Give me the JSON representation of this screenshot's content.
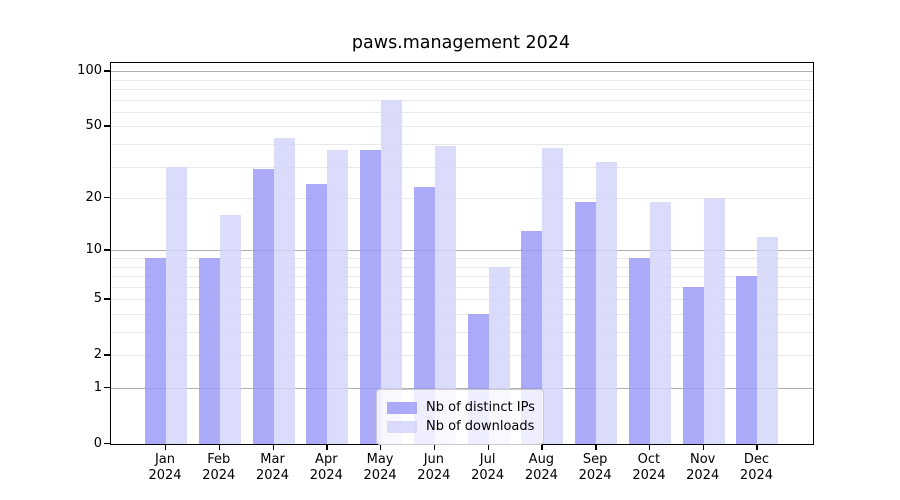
{
  "title": "paws.management 2024",
  "chart_data": {
    "type": "bar",
    "title": "paws.management 2024",
    "categories": [
      "Jan",
      "Feb",
      "Mar",
      "Apr",
      "May",
      "Jun",
      "Jul",
      "Aug",
      "Sep",
      "Oct",
      "Nov",
      "Dec"
    ],
    "year": "2024",
    "series": [
      {
        "name": "Nb of distinct IPs",
        "color": "#9696f8",
        "values": [
          9,
          9,
          29,
          24,
          37,
          23,
          4,
          13,
          19,
          9,
          6,
          7
        ]
      },
      {
        "name": "Nb of downloads",
        "color": "#d2d2fa",
        "values": [
          30,
          16,
          43,
          37,
          70,
          39,
          8,
          38,
          32,
          19,
          20,
          12
        ]
      }
    ],
    "bar_alpha": 0.8,
    "xlabel": "",
    "ylabel": "",
    "y_axis": {
      "scale": "log1p",
      "tick_labels": [
        0,
        1,
        2,
        5,
        10,
        20,
        50,
        100
      ],
      "major_gridlines": [
        1,
        10,
        100
      ],
      "minor_gridlines": [
        2,
        3,
        4,
        5,
        6,
        7,
        8,
        9,
        20,
        30,
        40,
        50,
        60,
        70,
        80,
        90
      ],
      "range": [
        0,
        110
      ]
    },
    "grid": true,
    "legend": {
      "position": "lower center",
      "entries": [
        "Nb of distinct IPs",
        "Nb of downloads"
      ]
    },
    "colors": {
      "major_grid": "#b0b0b0",
      "minor_grid": "#e8e8e8",
      "axis": "#000000",
      "background": "#ffffff"
    }
  }
}
